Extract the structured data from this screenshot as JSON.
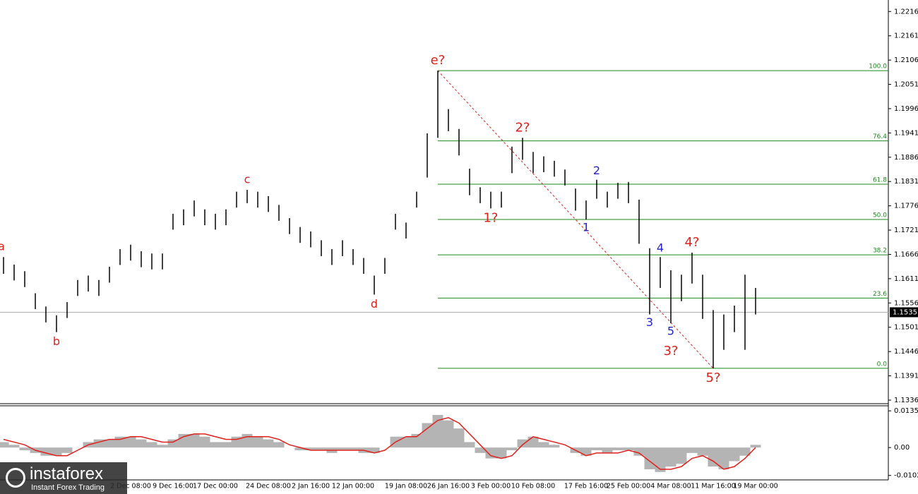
{
  "logo": {
    "name": "instaforex",
    "tagline": "Instant Forex Trading"
  },
  "chart_data": [
    {
      "type": "ohlc",
      "categories": [
        null,
        null,
        null,
        null,
        null,
        null,
        null,
        null,
        null,
        null,
        null,
        null,
        "2 Dec 08:00",
        null,
        null,
        null,
        "9 Dec 16:00",
        null,
        null,
        null,
        "17 Dec 00:00",
        null,
        null,
        null,
        null,
        "24 Dec 08:00",
        null,
        null,
        null,
        "2 Jan 16:00",
        null,
        null,
        null,
        "12 Jan 00:00",
        null,
        null,
        null,
        null,
        "19 Jan 08:00",
        null,
        null,
        null,
        "26 Jan 16:00",
        null,
        null,
        null,
        "3 Feb 00:00",
        null,
        null,
        null,
        "10 Feb 08:00",
        null,
        null,
        null,
        null,
        "17 Feb 16:00",
        null,
        null,
        null,
        "25 Feb 00:00",
        null,
        null,
        null,
        "4 Mar 08:00",
        null,
        null,
        null,
        "11 Mar 16:00",
        null,
        null,
        null,
        "19 Mar 00:00"
      ],
      "high": [
        1.166,
        1.1643,
        1.1628,
        1.1578,
        1.1548,
        1.1528,
        1.1558,
        1.1608,
        1.1618,
        1.1608,
        1.1638,
        1.1678,
        1.1688,
        1.1673,
        1.1668,
        1.1668,
        1.1758,
        1.1768,
        1.1788,
        1.1768,
        1.1758,
        1.1768,
        1.1808,
        1.1812,
        1.1808,
        1.1798,
        1.1778,
        1.1748,
        1.1728,
        1.1718,
        1.1698,
        1.1678,
        1.1698,
        1.1678,
        1.1658,
        1.1618,
        1.1658,
        1.1758,
        1.1738,
        1.1808,
        1.194,
        1.2082,
        1.1995,
        1.195,
        1.186,
        1.1818,
        1.1808,
        1.1808,
        1.191,
        1.193,
        1.1898,
        1.1888,
        1.1878,
        1.1858,
        1.1815,
        1.1788,
        1.1835,
        1.1808,
        1.1828,
        1.183,
        1.179,
        1.168,
        1.166,
        1.163,
        1.162,
        1.167,
        1.162,
        1.154,
        1.153,
        1.155,
        1.162,
        1.159
      ],
      "low": [
        1.1622,
        1.1607,
        1.1592,
        1.1542,
        1.1512,
        1.149,
        1.1522,
        1.1572,
        1.1582,
        1.1572,
        1.1602,
        1.1642,
        1.1652,
        1.1637,
        1.1632,
        1.1632,
        1.1722,
        1.1732,
        1.1752,
        1.1732,
        1.1722,
        1.1732,
        1.1772,
        1.1782,
        1.1772,
        1.1762,
        1.1742,
        1.1712,
        1.1692,
        1.1682,
        1.1662,
        1.1642,
        1.1662,
        1.1642,
        1.1622,
        1.1575,
        1.1622,
        1.1722,
        1.1702,
        1.1772,
        1.184,
        1.193,
        1.1945,
        1.189,
        1.18,
        1.1782,
        1.177,
        1.1772,
        1.185,
        1.188,
        1.185,
        1.1852,
        1.1842,
        1.1822,
        1.1765,
        1.1745,
        1.1792,
        1.1772,
        1.1792,
        1.1782,
        1.169,
        1.153,
        1.159,
        1.151,
        1.156,
        1.16,
        1.152,
        1.1408,
        1.145,
        1.149,
        1.145,
        1.153
      ],
      "color": "#000000",
      "ylim": [
        1.1328,
        1.2242
      ],
      "yticks": [
        1.2216,
        1.2161,
        1.2106,
        1.2051,
        1.1996,
        1.1941,
        1.1886,
        1.1831,
        1.1776,
        1.1721,
        1.1666,
        1.1611,
        1.1556,
        1.1501,
        1.1446,
        1.1391,
        1.1336
      ],
      "last_price": 1.1535,
      "fib_color": "#1a8a1a",
      "fib_levels": [
        {
          "value": 1.2082,
          "label": "100.0"
        },
        {
          "value": 1.1923,
          "label": "76.4"
        },
        {
          "value": 1.1825,
          "label": "61.8"
        },
        {
          "value": 1.1745,
          "label": "50.0"
        },
        {
          "value": 1.1665,
          "label": "38.2"
        },
        {
          "value": 1.1567,
          "label": "23.6"
        },
        {
          "value": 1.1408,
          "label": "0.0"
        }
      ],
      "annotation_colors": {
        "major": "#e0201b",
        "minor": "#2323c8"
      },
      "annotations": [
        {
          "text": "a",
          "bar": 0,
          "side": "above",
          "level": "major"
        },
        {
          "text": "b",
          "bar": 5,
          "side": "below",
          "level": "major"
        },
        {
          "text": "c",
          "bar": 23,
          "side": "above",
          "level": "major"
        },
        {
          "text": "d",
          "bar": 35,
          "side": "below",
          "level": "major"
        },
        {
          "text": "e?",
          "bar": 41,
          "side": "above",
          "level": "major"
        },
        {
          "text": "1?",
          "bar": 46,
          "side": "below",
          "level": "major"
        },
        {
          "text": "2?",
          "bar": 49,
          "side": "above",
          "level": "major"
        },
        {
          "text": "1",
          "bar": 55,
          "side": "below",
          "level": "minor"
        },
        {
          "text": "2",
          "bar": 56,
          "side": "above",
          "level": "minor"
        },
        {
          "text": "3",
          "bar": 61,
          "side": "below",
          "level": "minor"
        },
        {
          "text": "4",
          "bar": 62,
          "side": "above",
          "level": "minor"
        },
        {
          "text": "5",
          "bar": 63,
          "side": "below",
          "level": "minor"
        },
        {
          "text": "3?",
          "bar": 63,
          "side": "below",
          "level": "major"
        },
        {
          "text": "4?",
          "bar": 65,
          "side": "above",
          "level": "major"
        },
        {
          "text": "5?",
          "bar": 67,
          "side": "below",
          "level": "major"
        }
      ],
      "trendline": {
        "from_bar": 41,
        "to_bar": 67,
        "color": "#e0201b"
      }
    },
    {
      "type": "oscillator",
      "values": [
        0.002,
        0.001,
        -0.001,
        -0.002,
        -0.003,
        -0.003,
        -0.002,
        0.0,
        0.002,
        0.003,
        0.003,
        0.004,
        0.004,
        0.003,
        0.002,
        0.001,
        0.003,
        0.005,
        0.005,
        0.004,
        0.002,
        0.002,
        0.004,
        0.005,
        0.004,
        0.003,
        0.002,
        0.0,
        -0.001,
        -0.001,
        -0.001,
        -0.002,
        -0.001,
        -0.001,
        -0.002,
        -0.002,
        0.0,
        0.004,
        0.004,
        0.005,
        0.009,
        0.012,
        0.01,
        0.007,
        0.002,
        -0.002,
        -0.004,
        -0.004,
        -0.001,
        0.003,
        0.004,
        0.002,
        0.001,
        0.0,
        -0.002,
        -0.003,
        -0.001,
        -0.002,
        -0.001,
        -0.001,
        -0.003,
        -0.008,
        -0.009,
        -0.007,
        -0.006,
        -0.002,
        -0.003,
        -0.007,
        -0.008,
        -0.005,
        -0.003,
        0.001
      ],
      "signal": [
        0.003,
        0.002,
        0.001,
        -0.001,
        -0.002,
        -0.003,
        -0.003,
        -0.001,
        0.001,
        0.002,
        0.003,
        0.003,
        0.004,
        0.004,
        0.003,
        0.002,
        0.002,
        0.004,
        0.005,
        0.005,
        0.004,
        0.003,
        0.003,
        0.004,
        0.004,
        0.004,
        0.003,
        0.001,
        0.0,
        -0.001,
        -0.001,
        -0.001,
        -0.001,
        -0.001,
        -0.001,
        -0.002,
        -0.001,
        0.002,
        0.004,
        0.004,
        0.007,
        0.01,
        0.011,
        0.009,
        0.005,
        0.001,
        -0.003,
        -0.004,
        -0.003,
        0.001,
        0.004,
        0.003,
        0.002,
        0.001,
        -0.001,
        -0.003,
        -0.002,
        -0.002,
        -0.002,
        -0.001,
        -0.002,
        -0.005,
        -0.008,
        -0.008,
        -0.007,
        -0.004,
        -0.003,
        -0.005,
        -0.008,
        -0.007,
        -0.004,
        0.0
      ],
      "color": "#b4b4b4",
      "signal_color": "#e0201b",
      "ylim": [
        -0.0119,
        0.0151
      ],
      "yticks": [
        0.0135,
        {
          "value": 0,
          "label": "0.00"
        },
        -0.01026
      ]
    }
  ]
}
